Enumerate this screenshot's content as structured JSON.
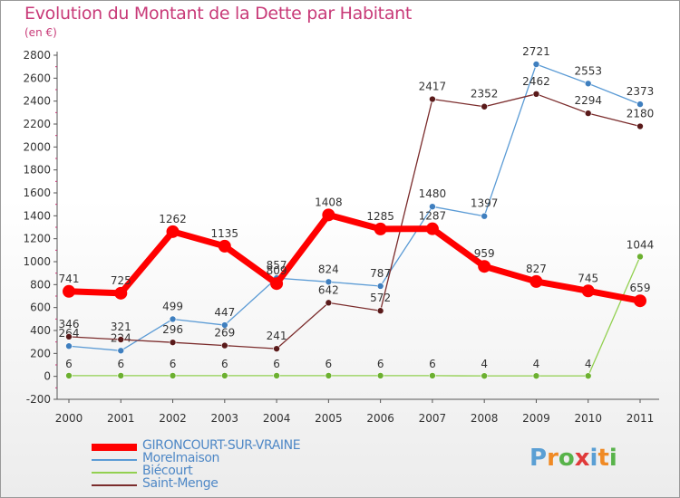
{
  "title": "Evolution du Montant de la Dette par Habitant",
  "subtitle": "(en €)",
  "logo_text": "Proxiti",
  "colors": {
    "title": "#c83a78",
    "legend_text": "#4f88c6",
    "logo_letters": [
      "#5a9fd4",
      "#f08a24",
      "#58b34a",
      "#e03a3a",
      "#5a9fd4",
      "#f08a24",
      "#58b34a"
    ]
  },
  "chart_data": {
    "type": "line",
    "title": "Evolution du Montant de la Dette par Habitant",
    "subtitle": "(en €)",
    "xlabel": "",
    "ylabel": "",
    "ylim": [
      -200,
      2800
    ],
    "yticks": [
      -200,
      0,
      200,
      400,
      600,
      800,
      1000,
      1200,
      1400,
      1600,
      1800,
      2000,
      2200,
      2400,
      2600,
      2800
    ],
    "grid": false,
    "legend": "bottom-left",
    "x": [
      "2000",
      "2001",
      "2002",
      "2003",
      "2004",
      "2005",
      "2006",
      "2007",
      "2008",
      "2009",
      "2010",
      "2011"
    ],
    "series": [
      {
        "name": "GIRONCOURT-SUR-VRAINE",
        "color": "#ff0000",
        "values": [
          741,
          725,
          1262,
          1135,
          809,
          1408,
          1285,
          1287,
          959,
          827,
          745,
          659
        ]
      },
      {
        "name": "Morelmaison",
        "color": "#5b9bd5",
        "values": [
          264,
          224,
          499,
          447,
          857,
          824,
          787,
          1480,
          1397,
          2721,
          2553,
          2373
        ]
      },
      {
        "name": "Biécourt",
        "color": "#92d050",
        "values": [
          6,
          6,
          6,
          6,
          6,
          6,
          6,
          6,
          4,
          4,
          4,
          1044
        ]
      },
      {
        "name": "Saint-Menge",
        "color": "#7b2c2c",
        "values": [
          346,
          321,
          296,
          269,
          241,
          642,
          572,
          2417,
          2352,
          2462,
          2294,
          2180
        ]
      }
    ]
  }
}
